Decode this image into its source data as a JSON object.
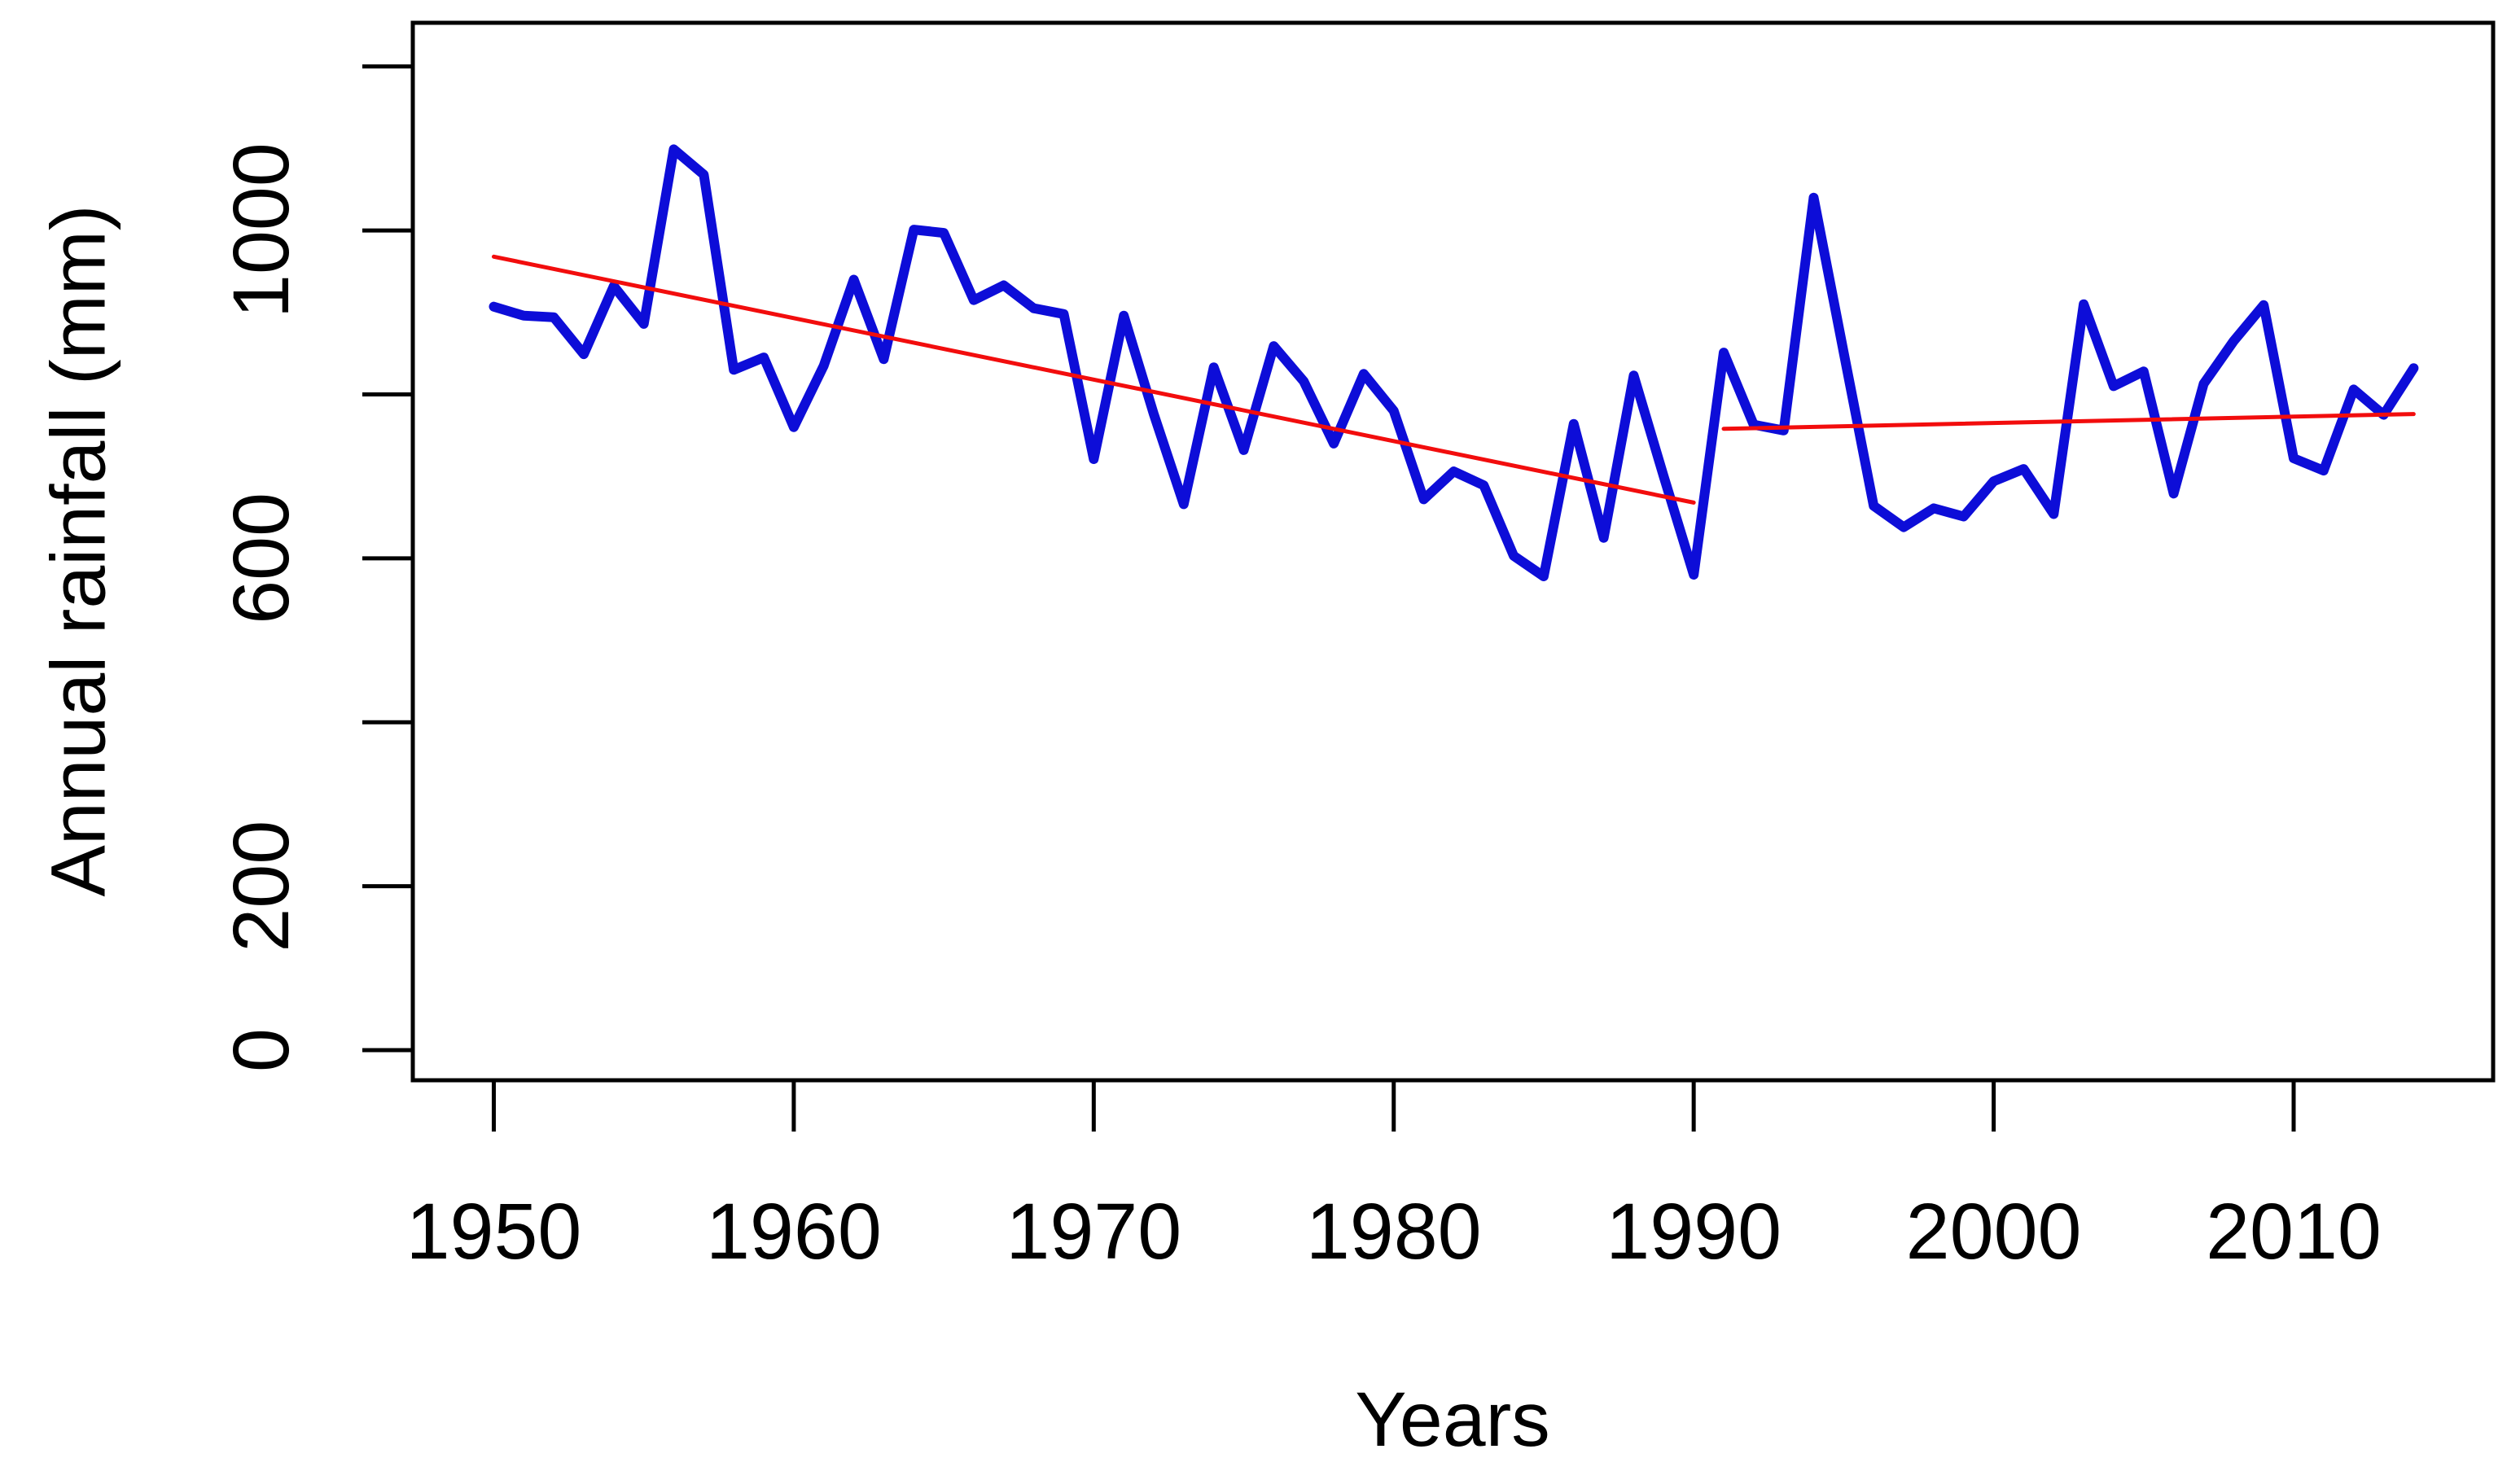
{
  "chart_data": {
    "type": "line",
    "title": "",
    "xlabel": "Years",
    "ylabel": "Annual rainfall (mm)",
    "grid": false,
    "legend": "none",
    "xlim": [
      1947.3,
      2016.65
    ],
    "ylim": [
      -36.7,
      1253.3
    ],
    "x_axis": {
      "ticks": [
        1950,
        1960,
        1970,
        1980,
        1990,
        2000,
        2010
      ],
      "tick_labels": [
        "1950",
        "1960",
        "1970",
        "1980",
        "1990",
        "2000",
        "2010"
      ]
    },
    "y_axis": {
      "ticks": [
        0,
        200,
        400,
        600,
        800,
        1000,
        1200
      ],
      "labeled_ticks": [
        {
          "value": 0,
          "label": "0"
        },
        {
          "value": 200,
          "label": "200"
        },
        {
          "value": 600,
          "label": "600"
        },
        {
          "value": 1000,
          "label": "1000"
        }
      ]
    },
    "x": [
      1950,
      1951,
      1952,
      1953,
      1954,
      1955,
      1956,
      1957,
      1958,
      1959,
      1960,
      1961,
      1962,
      1963,
      1964,
      1965,
      1966,
      1967,
      1968,
      1969,
      1970,
      1971,
      1972,
      1973,
      1974,
      1975,
      1976,
      1977,
      1978,
      1979,
      1980,
      1981,
      1982,
      1983,
      1984,
      1985,
      1986,
      1987,
      1988,
      1989,
      1990,
      1991,
      1992,
      1993,
      1994,
      1995,
      1996,
      1997,
      1998,
      1999,
      2000,
      2001,
      2002,
      2003,
      2004,
      2005,
      2006,
      2007,
      2008,
      2009,
      2010,
      2011,
      2012,
      2013,
      2014
    ],
    "series": [
      {
        "name": "annual rainfall",
        "color": "#0d0dd8",
        "stroke_width": 12,
        "values": [
          907,
          896,
          894,
          849,
          932,
          886,
          1099,
          1068,
          830,
          845,
          760,
          835,
          940,
          843,
          1001,
          997,
          915,
          933,
          905,
          898,
          721,
          896,
          776,
          666,
          833,
          732,
          859,
          816,
          740,
          825,
          780,
          672,
          706,
          689,
          603,
          578,
          764,
          625,
          823,
          700,
          580,
          851,
          763,
          756,
          1040,
          851,
          664,
          638,
          661,
          651,
          694,
          709,
          654,
          910,
          810,
          828,
          679,
          813,
          865,
          909,
          722,
          707,
          806,
          775,
          832
        ]
      }
    ],
    "trend_lines": [
      {
        "name": "trend 1950-1990",
        "color": "#f20d0d",
        "stroke_width": 5,
        "from": {
          "x": 1950,
          "y": 968
        },
        "to": {
          "x": 1990,
          "y": 668
        }
      },
      {
        "name": "trend 1991-2014",
        "color": "#f20d0d",
        "stroke_width": 5,
        "from": {
          "x": 1991,
          "y": 758
        },
        "to": {
          "x": 2014,
          "y": 776
        }
      }
    ],
    "axis_color": "#000000",
    "background_color": "#ffffff"
  }
}
